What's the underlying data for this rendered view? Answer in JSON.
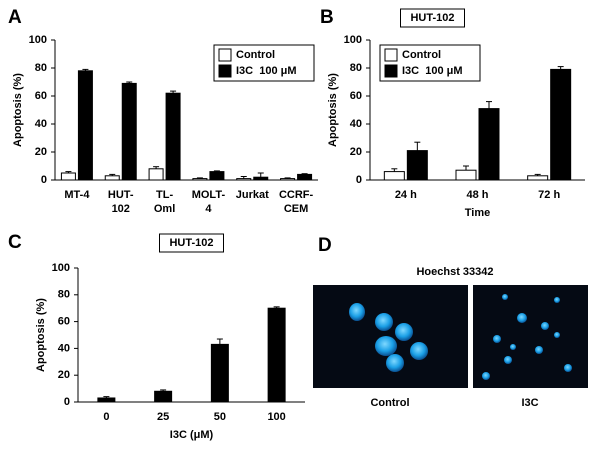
{
  "chart_data": [
    {
      "type": "bar",
      "panel": "A",
      "ylabel": "Apoptosis (%)",
      "categories": [
        [
          "MT-4"
        ],
        [
          "HUT-",
          "102"
        ],
        [
          "TL-",
          "Oml"
        ],
        [
          "MOLT-",
          "4"
        ],
        [
          "Jurkat"
        ],
        [
          "CCRF-",
          "CEM"
        ]
      ],
      "series": [
        {
          "name": "Control",
          "color": "#ffffff",
          "values": [
            5,
            3,
            8,
            1,
            1,
            1
          ],
          "errors": [
            1,
            1,
            1.5,
            0.5,
            1.5,
            0.5
          ]
        },
        {
          "name": "I3C  100 μM",
          "color": "#000000",
          "values": [
            78,
            69,
            62,
            6,
            2,
            4
          ],
          "errors": [
            1,
            1,
            1.5,
            0.5,
            3,
            0.5
          ]
        }
      ],
      "ylim": [
        0,
        100
      ],
      "yticks": [
        0,
        20,
        40,
        60,
        80,
        100
      ],
      "legend": "upper right"
    },
    {
      "type": "bar",
      "panel": "B",
      "title": "HUT-102",
      "ylabel": "Apoptosis (%)",
      "xlabel": "Time",
      "categories": [
        [
          "24 h"
        ],
        [
          "48 h"
        ],
        [
          "72 h"
        ]
      ],
      "series": [
        {
          "name": "Control",
          "color": "#ffffff",
          "values": [
            6,
            7,
            3
          ],
          "errors": [
            2,
            3,
            1
          ]
        },
        {
          "name": "I3C  100 μM",
          "color": "#000000",
          "values": [
            21,
            51,
            79
          ],
          "errors": [
            6,
            5,
            2
          ]
        }
      ],
      "ylim": [
        0,
        100
      ],
      "yticks": [
        0,
        20,
        40,
        60,
        80,
        100
      ],
      "legend": "upper left"
    },
    {
      "type": "bar",
      "panel": "C",
      "title": "HUT-102",
      "ylabel": "Apoptosis (%)",
      "xlabel": "I3C (μM)",
      "categories": [
        [
          "0"
        ],
        [
          "25"
        ],
        [
          "50"
        ],
        [
          "100"
        ]
      ],
      "series": [
        {
          "color": "#000000",
          "values": [
            3,
            8,
            43,
            70
          ],
          "errors": [
            1,
            1,
            4,
            1
          ]
        }
      ],
      "ylim": [
        0,
        100
      ],
      "yticks": [
        0,
        20,
        40,
        60,
        80,
        100
      ]
    }
  ],
  "image_panel": {
    "panel": "D",
    "title": "Hoechst 33342",
    "captions": [
      "Control",
      "I3C"
    ]
  }
}
